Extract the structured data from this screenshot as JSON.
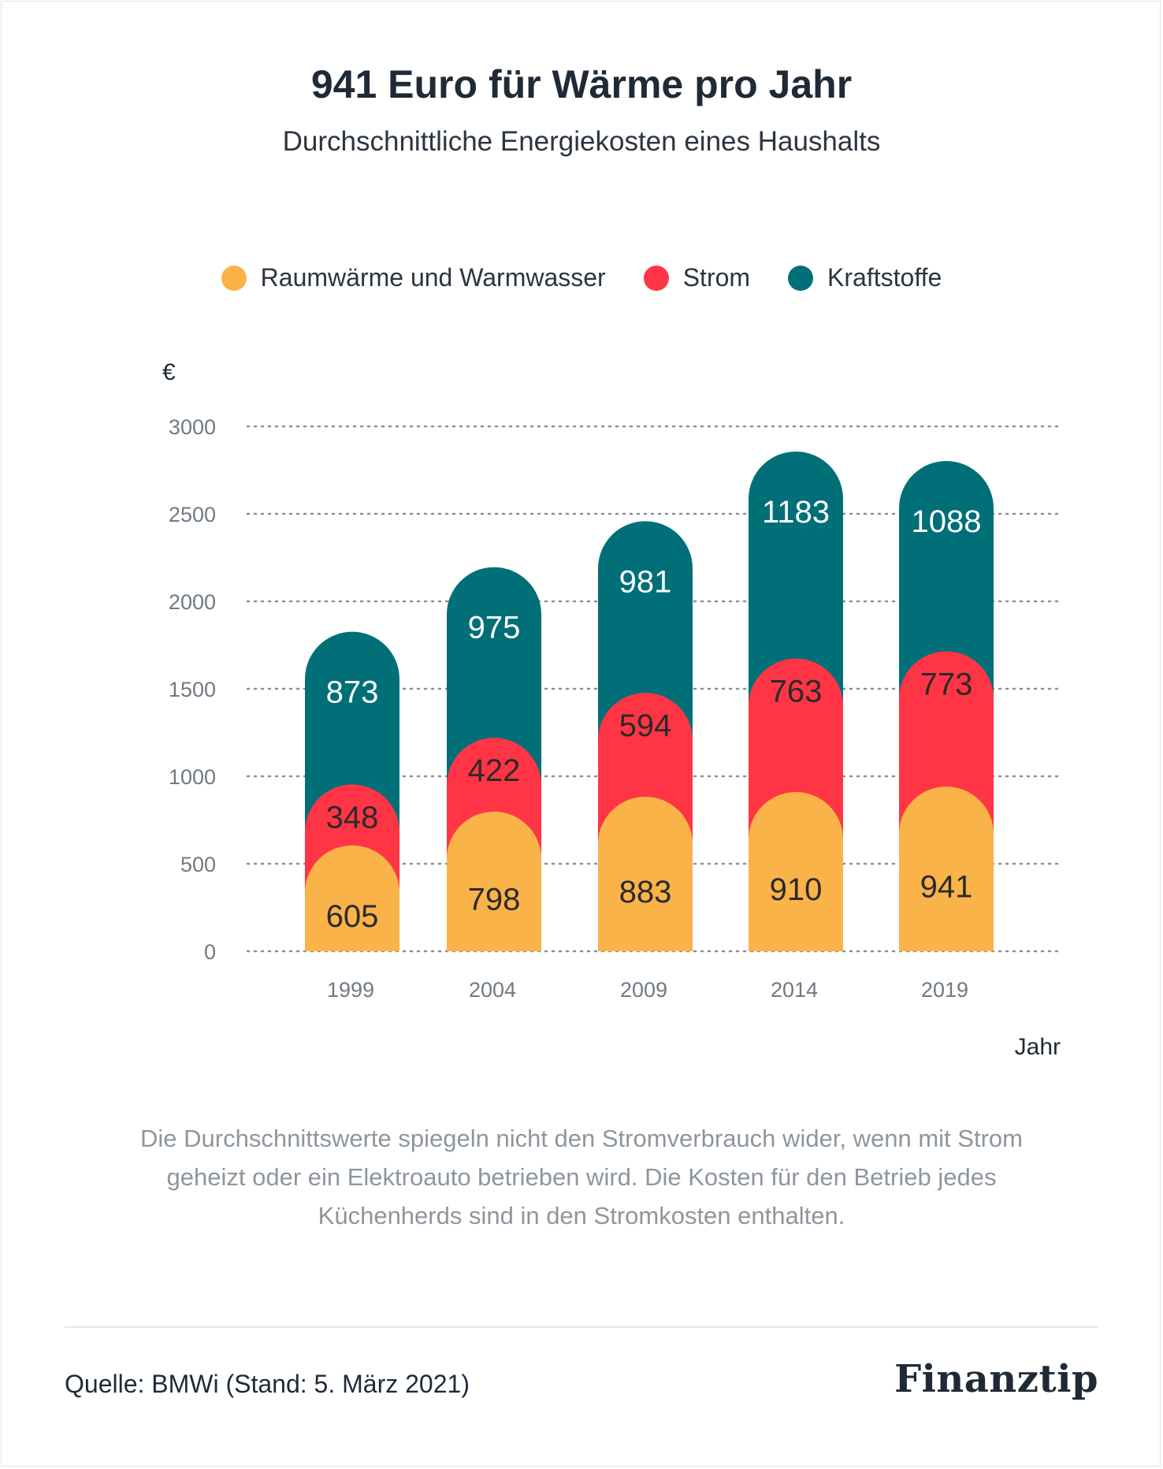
{
  "title": "941 Euro für Wärme pro Jahr",
  "subtitle": "Durchschnittliche Energiekosten eines Haushalts",
  "legend": [
    {
      "label": "Raumwärme und Warmwasser",
      "color": "#f9b348"
    },
    {
      "label": "Strom",
      "color": "#ff3545"
    },
    {
      "label": "Kraftstoffe",
      "color": "#006f77"
    }
  ],
  "chart_data": {
    "type": "bar",
    "stacked": true,
    "categories": [
      "1999",
      "2004",
      "2009",
      "2014",
      "2019"
    ],
    "series": [
      {
        "name": "Raumwärme und Warmwasser",
        "color": "#f9b348",
        "values": [
          605,
          798,
          883,
          910,
          941
        ]
      },
      {
        "name": "Strom",
        "color": "#ff3545",
        "values": [
          348,
          422,
          594,
          763,
          773
        ]
      },
      {
        "name": "Kraftstoffe",
        "color": "#006f77",
        "values": [
          873,
          975,
          981,
          1183,
          1088
        ]
      }
    ],
    "ylabel": "€",
    "xlabel": "Jahr",
    "ylim": [
      0,
      3000
    ],
    "yticks": [
      "0",
      "500",
      "1000",
      "1500",
      "2000",
      "2500",
      "3000"
    ],
    "grid": true,
    "legend_position": "top-center"
  },
  "note": "Die Durchschnittswerte spiegeln nicht den Stromverbrauch wider, wenn mit Strom geheizt oder ein Elektroauto betrieben wird. Die Kosten für den Betrieb jedes Küchenherds sind in den Stromkosten enthalten.",
  "source": "Quelle: BMWi (Stand: 5. März 2021)",
  "brand": "Finanztip"
}
